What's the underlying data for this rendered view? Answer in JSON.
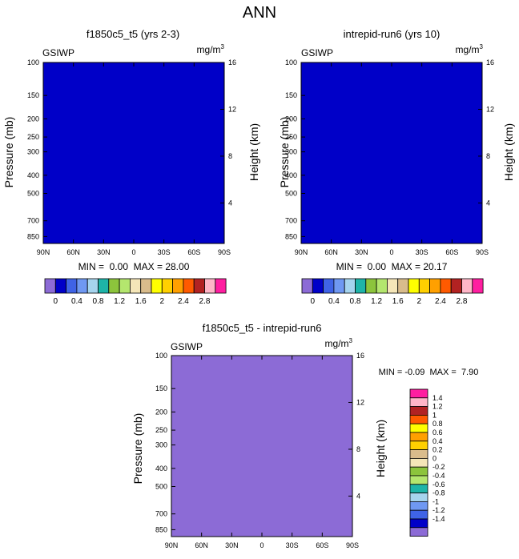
{
  "title": "ANN",
  "palette_abs": [
    "#8c6bd6",
    "#0000c8",
    "#3f63e6",
    "#6f98f2",
    "#a6d4ee",
    "#1eb4a8",
    "#8cc43c",
    "#b4e66e",
    "#f5e6b8",
    "#d9bc8c",
    "#ffff00",
    "#ffd000",
    "#ffa000",
    "#ff5a00",
    "#b22222",
    "#ffb6c8",
    "#ff1ea0"
  ],
  "palette_diff": [
    "#8c6bd6",
    "#0000c8",
    "#3f63e6",
    "#6f98f2",
    "#a6d4ee",
    "#1eb4a8",
    "#b4e66e",
    "#8cc43c",
    "#f5e6b8",
    "#d9bc8c",
    "#ffd000",
    "#ffa000",
    "#ffff00",
    "#ff5a00",
    "#b22222",
    "#ffb6c8",
    "#ff1ea0"
  ],
  "chart_data": [
    {
      "type": "heatmap",
      "title": "f1850c5_t5 (yrs 2-3)",
      "left_label": "GSIWP",
      "units_base": "mg/m",
      "units_exp": "3",
      "ylabel": "Pressure (mb)",
      "ylabel_right": "Height (km)",
      "x_ticks": [
        "90N",
        "60N",
        "30N",
        "0",
        "30S",
        "60S",
        "90S"
      ],
      "x_tick_values": [
        90,
        60,
        30,
        0,
        -30,
        -60,
        -90
      ],
      "y_ticks": [
        "100",
        "150",
        "200",
        "250",
        "300",
        "400",
        "500",
        "700",
        "850"
      ],
      "y_tick_values": [
        100,
        150,
        200,
        250,
        300,
        400,
        500,
        700,
        850
      ],
      "y_right_ticks": [
        "16",
        "12",
        "8",
        "4"
      ],
      "y_right_values": [
        16,
        12,
        8,
        4
      ],
      "ylim": [
        100,
        925
      ],
      "xlim": [
        90,
        -90
      ],
      "stats": "MIN =  0.00  MAX = 28.00",
      "peak_scale": 1.0,
      "colorbar_labels": [
        "0",
        "0.4",
        "0.8",
        "1.2",
        "1.6",
        "2",
        "2.4",
        "2.8"
      ]
    },
    {
      "type": "heatmap",
      "title": "intrepid-run6 (yrs 10)",
      "left_label": "GSIWP",
      "units_base": "mg/m",
      "units_exp": "3",
      "ylabel": "Pressure (mb)",
      "ylabel_right": "Height (km)",
      "x_ticks": [
        "90N",
        "60N",
        "30N",
        "0",
        "30S",
        "60S",
        "90S"
      ],
      "x_tick_values": [
        90,
        60,
        30,
        0,
        -30,
        -60,
        -90
      ],
      "y_ticks": [
        "100",
        "150",
        "200",
        "250",
        "300",
        "400",
        "500",
        "700",
        "850"
      ],
      "y_tick_values": [
        100,
        150,
        200,
        250,
        300,
        400,
        500,
        700,
        850
      ],
      "y_right_ticks": [
        "16",
        "12",
        "8",
        "4"
      ],
      "y_right_values": [
        16,
        12,
        8,
        4
      ],
      "ylim": [
        100,
        925
      ],
      "xlim": [
        90,
        -90
      ],
      "stats": "MIN =  0.00  MAX = 20.17",
      "peak_scale": 0.72,
      "colorbar_labels": [
        "0",
        "0.4",
        "0.8",
        "1.2",
        "1.6",
        "2",
        "2.4",
        "2.8"
      ]
    },
    {
      "type": "heatmap",
      "title": "f1850c5_t5 - intrepid-run6",
      "left_label": "GSIWP",
      "units_base": "mg/m",
      "units_exp": "3",
      "ylabel": "Pressure (mb)",
      "ylabel_right": "Height (km)",
      "x_ticks": [
        "90N",
        "60N",
        "30N",
        "0",
        "30S",
        "60S",
        "90S"
      ],
      "x_tick_values": [
        90,
        60,
        30,
        0,
        -30,
        -60,
        -90
      ],
      "y_ticks": [
        "100",
        "150",
        "200",
        "250",
        "300",
        "400",
        "500",
        "700",
        "850"
      ],
      "y_tick_values": [
        100,
        150,
        200,
        250,
        300,
        400,
        500,
        700,
        850
      ],
      "y_right_ticks": [
        "16",
        "12",
        "8",
        "4"
      ],
      "y_right_values": [
        16,
        12,
        8,
        4
      ],
      "ylim": [
        100,
        925
      ],
      "xlim": [
        90,
        -90
      ],
      "stats": "MIN = -0.09  MAX =  7.90",
      "peak_scale": 0.28,
      "colorbar_labels": [
        "1.4",
        "1.2",
        "1",
        "0.8",
        "0.6",
        "0.4",
        "0.2",
        "0",
        "-0.2",
        "-0.4",
        "-0.6",
        "-0.8",
        "-1",
        "-1.2",
        "-1.4"
      ]
    }
  ]
}
